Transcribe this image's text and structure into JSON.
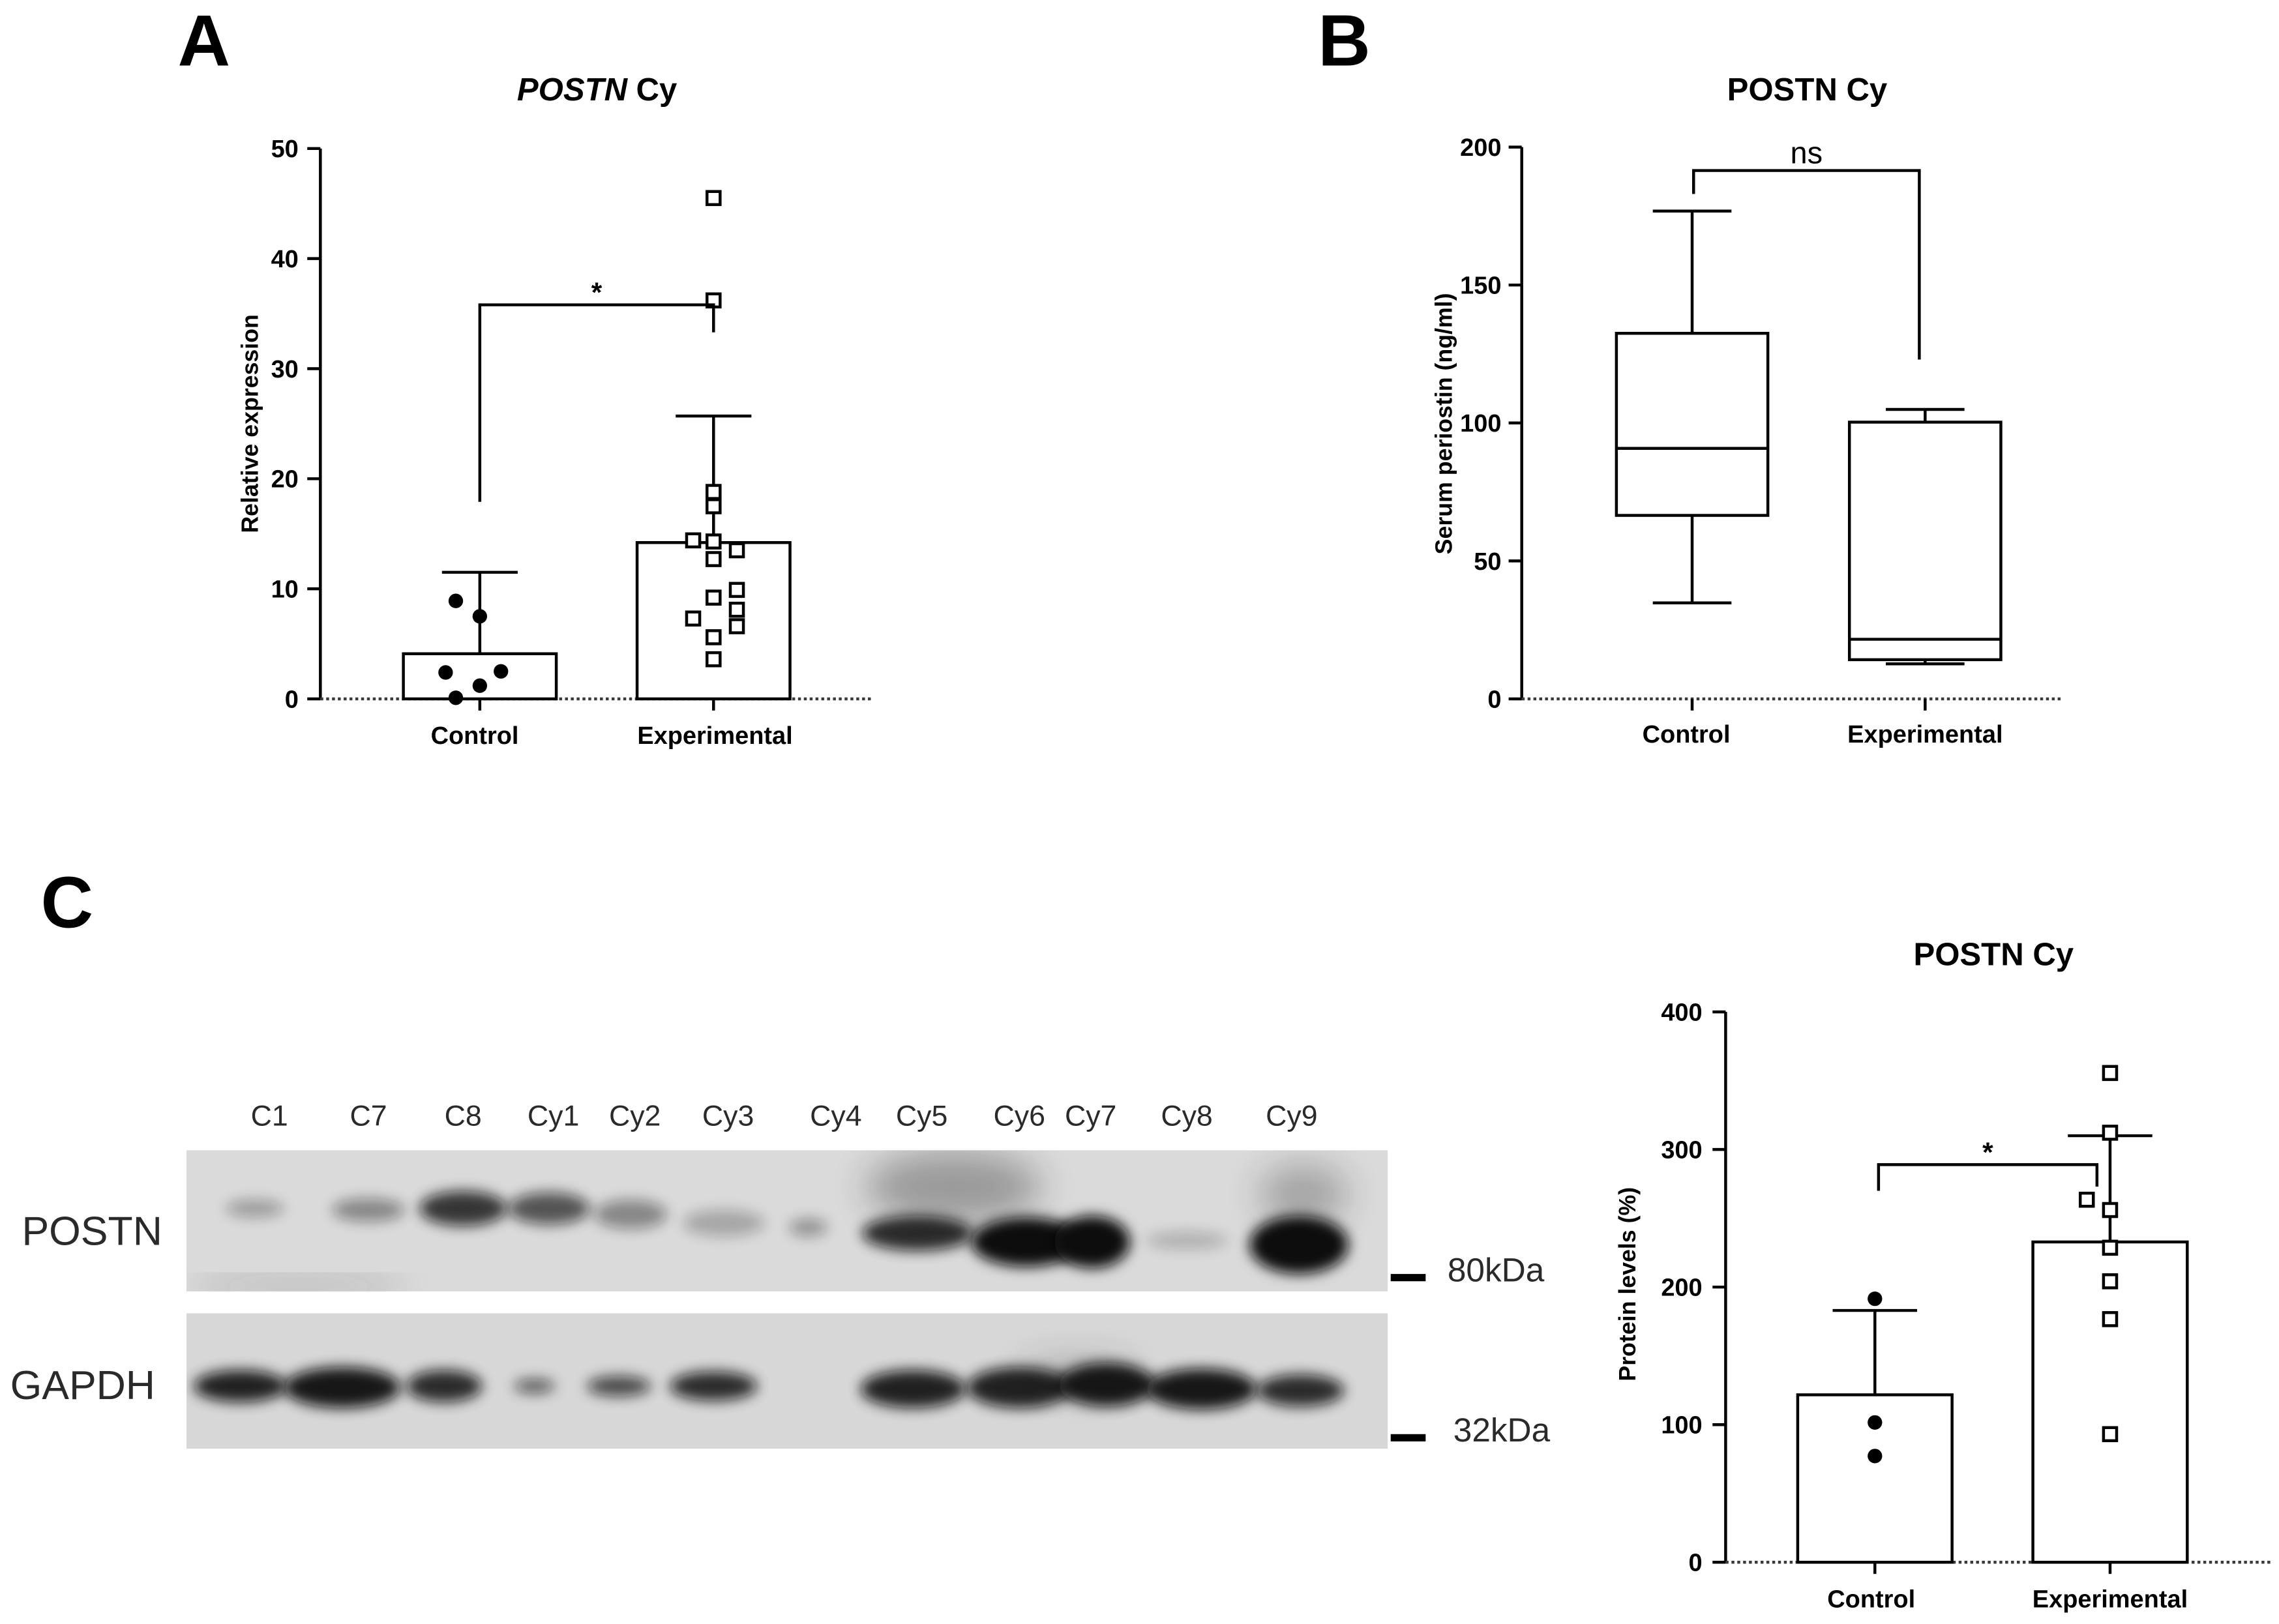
{
  "chart_data": [
    {
      "panel": "A",
      "type": "bar",
      "title_italic": "POSTN",
      "title_rest": "Cy",
      "xlabel": "",
      "ylabel": "Relative expression",
      "ylim": [
        0,
        50
      ],
      "yticks": [
        0,
        10,
        20,
        30,
        40,
        50
      ],
      "grid": false,
      "categories": [
        "Control",
        "Experimental"
      ],
      "values": [
        4.1,
        14.2
      ],
      "error_upper": [
        11.5,
        25.7
      ],
      "points": [
        [
          8.9,
          7.5,
          2.4,
          2.5,
          1.2,
          0.1
        ],
        [
          45.5,
          36.2,
          18.8,
          17.5,
          14.4,
          14.3,
          13.5,
          12.7,
          9.9,
          9.2,
          8.1,
          7.3,
          6.6,
          5.6,
          3.6
        ]
      ],
      "point_markers": [
        "filled-circle",
        "open-square"
      ],
      "significance": {
        "label": "*",
        "groups": [
          0,
          1
        ],
        "y": 35.8,
        "leg_ends": [
          17.9,
          33.3
        ]
      }
    },
    {
      "panel": "B",
      "type": "box",
      "title": "POSTN Cy",
      "xlabel": "",
      "ylabel": "Serum periostin (ng/ml)",
      "ylim": [
        0,
        200
      ],
      "yticks": [
        0,
        50,
        100,
        150,
        200
      ],
      "grid": false,
      "categories": [
        "Control",
        "Experimental"
      ],
      "boxes": [
        {
          "min": 34.8,
          "q1": 66.5,
          "median": 90.8,
          "q3": 132.5,
          "max": 176.8
        },
        {
          "min": 12.7,
          "q1": 14.2,
          "median": 21.6,
          "q3": 100.3,
          "max": 104.9
        }
      ],
      "significance": {
        "label": "ns",
        "groups": [
          0,
          1
        ],
        "y": 191.5,
        "leg_ends": [
          183,
          123
        ]
      }
    },
    {
      "panel": "C",
      "type": "bar",
      "title": "POSTN Cy",
      "xlabel": "",
      "ylabel": "Protein levels (%)",
      "ylim": [
        0,
        400
      ],
      "yticks": [
        0,
        100,
        200,
        300,
        400
      ],
      "grid": false,
      "categories": [
        "Control",
        "Experimental"
      ],
      "values": [
        121.7,
        232.8
      ],
      "error_upper": [
        183,
        310
      ],
      "points": [
        [
          191.5,
          101.6,
          77.2
        ],
        [
          355.6,
          312.2,
          263.5,
          256,
          228.6,
          204.2,
          176.7,
          93.1
        ]
      ],
      "point_markers": [
        "filled-circle",
        "open-square"
      ],
      "significance": {
        "label": "*",
        "groups": [
          0,
          1
        ],
        "y": 289,
        "leg_ends": [
          270,
          273
        ]
      }
    }
  ],
  "blot": {
    "lanes": [
      "C1",
      "C7",
      "C8",
      "Cy1",
      "Cy2",
      "Cy3",
      "Cy4",
      "Cy5",
      "Cy6",
      "Cy7",
      "Cy8",
      "Cy9"
    ],
    "rows": [
      {
        "label": "POSTN",
        "marker": "80kDa",
        "band_intensity": [
          0.3,
          0.4,
          0.8,
          0.65,
          0.4,
          0.25,
          0.35,
          0.85,
          1.0,
          1.0,
          0.2,
          1.0
        ]
      },
      {
        "label": "GAPDH",
        "marker": "32kDa",
        "band_intensity": [
          0.9,
          0.95,
          0.85,
          0.6,
          0.7,
          0.85,
          0.0,
          0.9,
          0.9,
          0.95,
          0.95,
          0.85
        ]
      }
    ]
  }
}
